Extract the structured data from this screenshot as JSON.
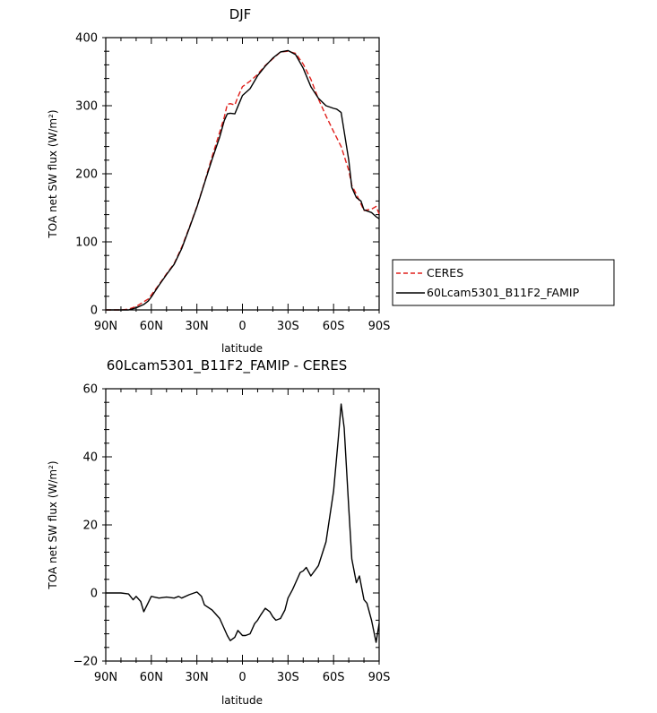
{
  "chart_data": [
    {
      "type": "line",
      "title": "DJF",
      "xlabel": "latitude",
      "ylabel": "TOA net SW flux (W/m²)",
      "xlim": [
        90,
        -90
      ],
      "ylim": [
        0,
        400
      ],
      "xtick_values": [
        90,
        60,
        30,
        0,
        -30,
        -60,
        -90
      ],
      "xtick_labels": [
        "90N",
        "60N",
        "30N",
        "0",
        "30S",
        "60S",
        "90S"
      ],
      "yticks": [
        0,
        100,
        200,
        300,
        400
      ],
      "grid": false,
      "legend": "right",
      "series": [
        {
          "name": "CERES",
          "color": "#e0201c",
          "dash": "dashed",
          "x": [
            90,
            85,
            80,
            75,
            70,
            65,
            62,
            60,
            55,
            50,
            45,
            40,
            35,
            30,
            25,
            20,
            15,
            12,
            10,
            8,
            5,
            3,
            0,
            -5,
            -10,
            -15,
            -20,
            -25,
            -30,
            -35,
            -40,
            -45,
            -50,
            -55,
            -60,
            -65,
            -70,
            -72,
            -75,
            -80,
            -85,
            -88,
            -90
          ],
          "y": [
            0,
            0,
            0,
            1,
            5,
            12,
            16,
            22,
            37,
            53,
            68,
            92,
            121,
            152,
            187,
            225,
            261,
            283,
            302,
            303,
            301,
            313,
            328,
            336,
            346,
            359,
            369,
            379,
            380,
            377,
            361,
            339,
            310,
            285,
            262,
            240,
            205,
            183,
            170,
            146,
            148,
            152,
            141
          ]
        },
        {
          "name": "60Lcam5301_B11F2_FAMIP",
          "color": "#000000",
          "dash": "solid",
          "x": [
            90,
            85,
            80,
            75,
            70,
            65,
            62,
            60,
            55,
            50,
            45,
            40,
            35,
            30,
            25,
            20,
            15,
            12,
            10,
            8,
            5,
            3,
            0,
            -5,
            -10,
            -15,
            -20,
            -25,
            -30,
            -35,
            -40,
            -45,
            -50,
            -55,
            -60,
            -62,
            -65,
            -70,
            -72,
            -75,
            -78,
            -80,
            -85,
            -88,
            -90
          ],
          "y": [
            0,
            0,
            0,
            0,
            3,
            8,
            13,
            19,
            36,
            52,
            67,
            90,
            120,
            151,
            186,
            221,
            254,
            278,
            288,
            289,
            288,
            299,
            315,
            325,
            344,
            358,
            370,
            379,
            381,
            375,
            355,
            328,
            311,
            300,
            296,
            295,
            290,
            220,
            180,
            165,
            160,
            147,
            143,
            137,
            134
          ]
        }
      ]
    },
    {
      "type": "line",
      "title": "60Lcam5301_B11F2_FAMIP - CERES",
      "xlabel": "latitude",
      "ylabel": "TOA net SW flux (W/m²)",
      "xlim": [
        90,
        -90
      ],
      "ylim": [
        -20,
        60
      ],
      "xtick_values": [
        90,
        60,
        30,
        0,
        -30,
        -60,
        -90
      ],
      "xtick_labels": [
        "90N",
        "60N",
        "30N",
        "0",
        "30S",
        "60S",
        "90S"
      ],
      "yticks": [
        -20,
        0,
        20,
        40,
        60
      ],
      "grid": false,
      "series": [
        {
          "color": "#000000",
          "dash": "solid",
          "x": [
            90,
            85,
            80,
            75,
            72,
            70,
            67,
            65,
            60,
            55,
            50,
            45,
            42,
            40,
            35,
            30,
            27,
            25,
            20,
            15,
            12,
            10,
            8,
            5,
            3,
            0,
            -2,
            -5,
            -8,
            -10,
            -12,
            -15,
            -18,
            -20,
            -22,
            -25,
            -28,
            -30,
            -33,
            -35,
            -38,
            -40,
            -42,
            -45,
            -50,
            -55,
            -60,
            -63,
            -65,
            -67,
            -70,
            -72,
            -75,
            -77,
            -80,
            -82,
            -85,
            -88,
            -90
          ],
          "y": [
            0,
            0,
            0,
            -0.3,
            -2,
            -1,
            -2.5,
            -5.5,
            -1,
            -1.5,
            -1.2,
            -1.5,
            -1,
            -1.5,
            -0.5,
            0.3,
            -1,
            -3.5,
            -5,
            -7.5,
            -10.5,
            -12.5,
            -14,
            -13,
            -11,
            -12.5,
            -12.5,
            -12,
            -9,
            -8,
            -6.5,
            -4.5,
            -5.5,
            -7,
            -8,
            -7.5,
            -5,
            -1.5,
            1,
            3,
            6,
            6.5,
            7.5,
            5,
            8,
            15,
            30,
            45,
            55.5,
            48.5,
            25,
            10,
            3,
            5,
            -2,
            -3,
            -8,
            -14.5,
            -9
          ]
        }
      ]
    }
  ]
}
